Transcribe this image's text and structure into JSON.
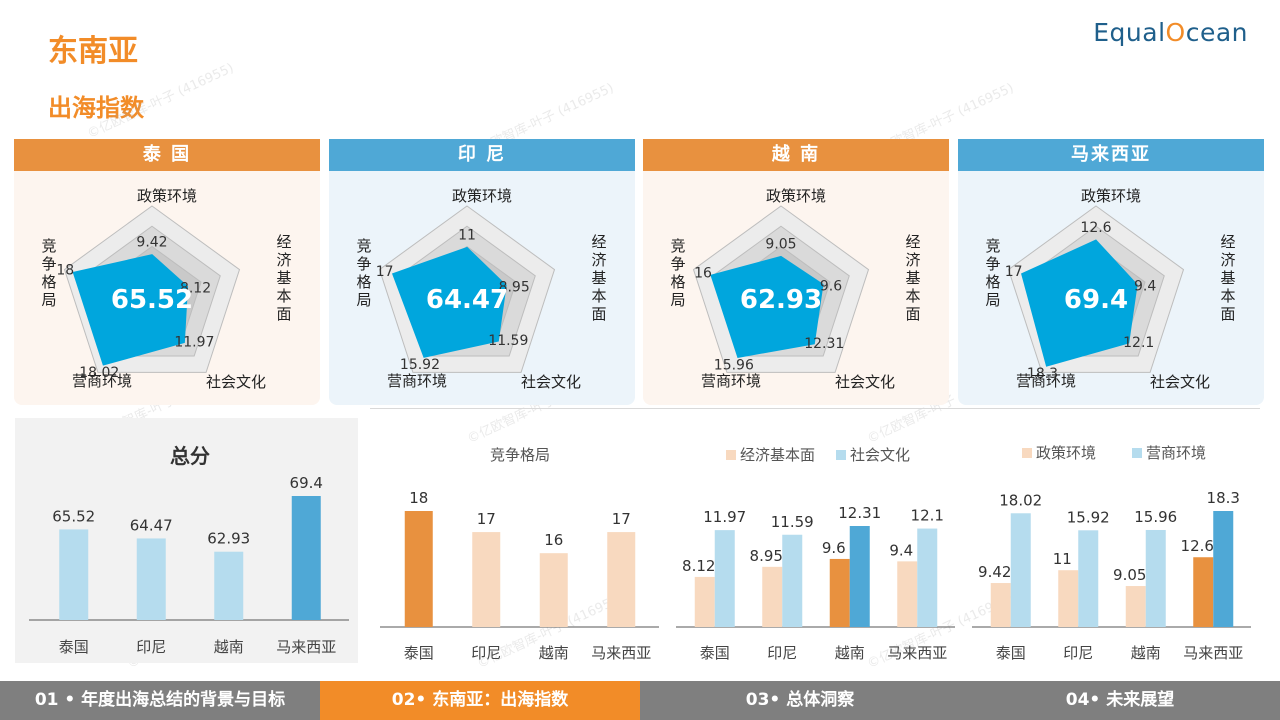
{
  "title": "东南亚",
  "subtitle": "出海指数",
  "logo": {
    "part1": "Equal",
    "part2": "O",
    "part3": "cean"
  },
  "watermark": "©亿欧智库-叶子 (416955)",
  "radar_axes": [
    "政策环境",
    "经济基本面",
    "社会文化",
    "营商环境",
    "竞争格局"
  ],
  "chart_data": [
    {
      "type": "radar",
      "title": "泰 国",
      "axes": [
        "政策环境",
        "经济基本面",
        "社会文化",
        "营商环境",
        "竞争格局"
      ],
      "values": [
        9.42,
        8.12,
        11.97,
        18.02,
        18
      ],
      "total": 65.52,
      "theme": "orange"
    },
    {
      "type": "radar",
      "title": "印 尼",
      "axes": [
        "政策环境",
        "经济基本面",
        "社会文化",
        "营商环境",
        "竞争格局"
      ],
      "values": [
        11,
        8.95,
        11.59,
        15.92,
        17
      ],
      "total": 64.47,
      "theme": "blue"
    },
    {
      "type": "radar",
      "title": "越 南",
      "axes": [
        "政策环境",
        "经济基本面",
        "社会文化",
        "营商环境",
        "竞争格局"
      ],
      "values": [
        9.05,
        9.6,
        12.31,
        15.96,
        16
      ],
      "total": 62.93,
      "theme": "orange"
    },
    {
      "type": "radar",
      "title": "马来西亚",
      "axes": [
        "政策环境",
        "经济基本面",
        "社会文化",
        "营商环境",
        "竞争格局"
      ],
      "values": [
        12.6,
        9.4,
        12.1,
        18.3,
        17
      ],
      "total": 69.4,
      "theme": "blue"
    },
    {
      "type": "bar",
      "title": "总分",
      "categories": [
        "泰国",
        "印尼",
        "越南",
        "马来西亚"
      ],
      "values": [
        65.52,
        64.47,
        62.93,
        69.4
      ],
      "highlight": 3
    },
    {
      "type": "bar",
      "title": "竞争格局",
      "categories": [
        "泰国",
        "印尼",
        "越南",
        "马来西亚"
      ],
      "values": [
        18,
        17,
        16,
        17
      ],
      "highlight": 0
    },
    {
      "type": "bar",
      "categories": [
        "泰国",
        "印尼",
        "越南",
        "马来西亚"
      ],
      "series": [
        {
          "name": "经济基本面",
          "values": [
            8.12,
            8.95,
            9.6,
            9.4
          ]
        },
        {
          "name": "社会文化",
          "values": [
            11.97,
            11.59,
            12.31,
            12.1
          ]
        }
      ],
      "highlight": 2
    },
    {
      "type": "bar",
      "categories": [
        "泰国",
        "印尼",
        "越南",
        "马来西亚"
      ],
      "series": [
        {
          "name": "政策环境",
          "values": [
            9.42,
            11,
            9.05,
            12.6
          ]
        },
        {
          "name": "营商环境",
          "values": [
            18.02,
            15.92,
            15.96,
            18.3
          ]
        }
      ],
      "highlight": 3
    }
  ],
  "colors": {
    "orange": "#e8913f",
    "orange_light": "#f8d9bf",
    "blue": "#4fa8d6",
    "blue_light": "#b5dcee",
    "radar_fill": "#00a6dd"
  },
  "footer": [
    {
      "label": "01 • 年度出海总结的背景与目标",
      "active": false
    },
    {
      "label": "02• 东南亚：出海指数",
      "active": true
    },
    {
      "label": "03• 总体洞察",
      "active": false
    },
    {
      "label": "04• 未来展望",
      "active": false
    }
  ]
}
